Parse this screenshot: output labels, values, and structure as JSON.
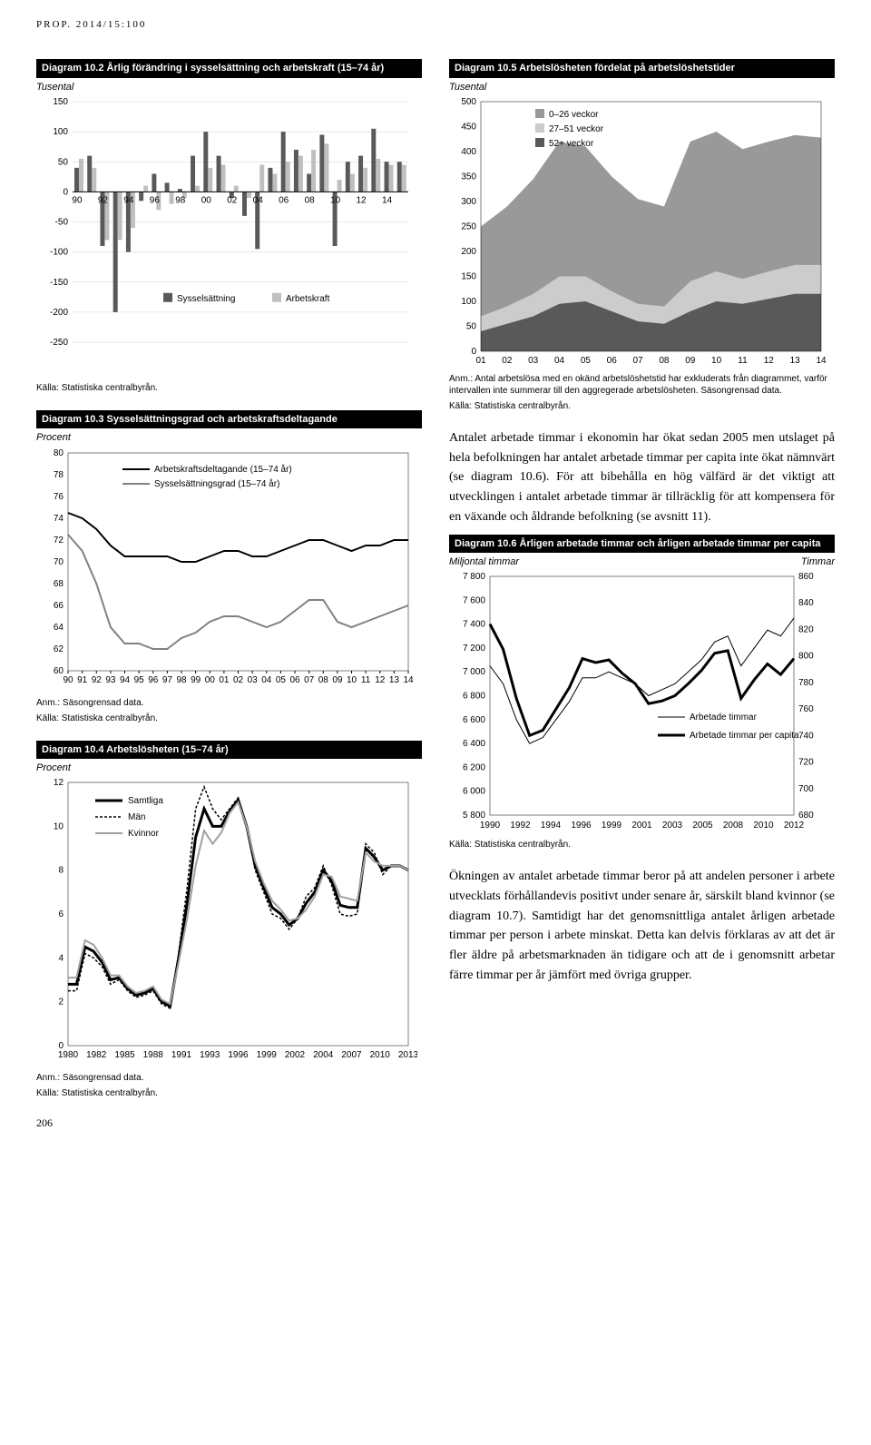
{
  "header": "PROP. 2014/15:100",
  "page_num": "206",
  "d102": {
    "title": "Diagram 10.2 Årlig förändring i sysselsättning och arbetskraft (15–74 år)",
    "subtitle": "Tusental",
    "type": "bar",
    "categories": [
      "90",
      "92",
      "94",
      "96",
      "98",
      "00",
      "02",
      "04",
      "06",
      "08",
      "10",
      "12",
      "14"
    ],
    "series": [
      {
        "name": "Sysselsättning",
        "color": "#595959",
        "values": [
          40,
          60,
          -90,
          -200,
          -100,
          -15,
          30,
          15,
          5,
          60,
          100,
          60,
          -10,
          -40,
          -95,
          40,
          100,
          70,
          30,
          95,
          -90,
          50,
          60,
          105,
          50,
          50
        ]
      },
      {
        "name": "Arbetskraft",
        "color": "#bfbfbf",
        "values": [
          55,
          40,
          -80,
          -80,
          -60,
          10,
          -30,
          -20,
          -10,
          10,
          40,
          45,
          10,
          -10,
          45,
          30,
          50,
          60,
          70,
          80,
          20,
          30,
          40,
          55,
          45,
          45
        ]
      }
    ],
    "xlim": [
      0,
      25
    ],
    "ylim": [
      -250,
      150
    ],
    "ytick_step": 50,
    "background_color": "#ffffff",
    "grid_color": "#d0d0d0",
    "source": "Källa: Statistiska centralbyrån."
  },
  "d103": {
    "title": "Diagram 10.3 Sysselsättningsgrad och arbetskraftsdeltagande",
    "subtitle": "Procent",
    "type": "line",
    "categories": [
      "90",
      "91",
      "92",
      "93",
      "94",
      "95",
      "96",
      "97",
      "98",
      "99",
      "00",
      "01",
      "02",
      "03",
      "04",
      "05",
      "06",
      "07",
      "08",
      "09",
      "10",
      "11",
      "12",
      "13",
      "14"
    ],
    "series": [
      {
        "name": "Arbetskraftsdeltagande (15–74 år)",
        "color": "#000000",
        "width": 2,
        "values": [
          74.5,
          74,
          73,
          71.5,
          70.5,
          70.5,
          70.5,
          70.5,
          70,
          70,
          70.5,
          71,
          71,
          70.5,
          70.5,
          71,
          71.5,
          72,
          72,
          71.5,
          71,
          71.5,
          71.5,
          72,
          72
        ]
      },
      {
        "name": "Sysselsättningsgrad (15–74 år)",
        "color": "#808080",
        "width": 2,
        "values": [
          72.5,
          71,
          68,
          64,
          62.5,
          62.5,
          62,
          62,
          63,
          63.5,
          64.5,
          65,
          65,
          64.5,
          64,
          64.5,
          65.5,
          66.5,
          66.5,
          64.5,
          64,
          64.5,
          65,
          65.5,
          66
        ]
      }
    ],
    "ylim": [
      60,
      80
    ],
    "ytick_step": 2,
    "note": "Anm.: Säsongrensad data.",
    "source": "Källa: Statistiska centralbyrån."
  },
  "d104": {
    "title": "Diagram 10.4 Arbetslösheten (15–74 år)",
    "subtitle": "Procent",
    "type": "line",
    "categories": [
      "1980",
      "1982",
      "1985",
      "1988",
      "1991",
      "1993",
      "1996",
      "1999",
      "2002",
      "2004",
      "2007",
      "2010",
      "2013"
    ],
    "series": [
      {
        "name": "Samtliga",
        "color": "#000000",
        "width": 3,
        "dash": "none",
        "values": [
          2.8,
          2.8,
          4.5,
          4.3,
          3.8,
          3.0,
          3.1,
          2.6,
          2.3,
          2.4,
          2.6,
          2.0,
          1.8,
          4.0,
          6.5,
          9.5,
          10.8,
          10.0,
          10.0,
          10.7,
          11.2,
          10.0,
          8.2,
          7.2,
          6.3,
          6.0,
          5.5,
          5.8,
          6.5,
          7.0,
          8.0,
          7.5,
          6.4,
          6.3,
          6.3,
          9.0,
          8.6,
          8.0,
          8.2,
          8.2,
          8.0
        ]
      },
      {
        "name": "Män",
        "color": "#000000",
        "width": 1.5,
        "dash": "3,2",
        "values": [
          2.5,
          2.5,
          4.2,
          4.0,
          3.6,
          2.8,
          3.0,
          2.5,
          2.2,
          2.3,
          2.5,
          1.9,
          1.7,
          4.2,
          7.2,
          10.8,
          11.8,
          10.8,
          10.3,
          10.8,
          11.3,
          10.0,
          8.0,
          7.0,
          6.0,
          5.8,
          5.3,
          5.8,
          6.8,
          7.2,
          8.2,
          7.3,
          6.0,
          5.9,
          6.0,
          9.2,
          8.8,
          7.8,
          8.2,
          8.2,
          8.0
        ]
      },
      {
        "name": "Kvinnor",
        "color": "#a0a0a0",
        "width": 2,
        "dash": "none",
        "values": [
          3.1,
          3.1,
          4.8,
          4.6,
          4.0,
          3.2,
          3.2,
          2.7,
          2.4,
          2.5,
          2.7,
          2.1,
          1.9,
          3.8,
          5.8,
          8.2,
          9.8,
          9.2,
          9.7,
          10.6,
          11.1,
          10.0,
          8.4,
          7.4,
          6.6,
          6.2,
          5.7,
          5.8,
          6.2,
          6.8,
          7.8,
          7.7,
          6.8,
          6.7,
          6.6,
          8.8,
          8.4,
          8.2,
          8.2,
          8.2,
          8.0
        ]
      }
    ],
    "ylim": [
      0,
      12
    ],
    "ytick_step": 2,
    "note": "Anm.: Säsongrensad data.",
    "source": "Källa: Statistiska centralbyrån."
  },
  "d105": {
    "title": "Diagram 10.5 Arbetslösheten fördelat på arbetslöshetstider",
    "subtitle": "Tusental",
    "type": "area",
    "legend": [
      {
        "label": "0–26 veckor",
        "color": "#999999"
      },
      {
        "label": "27–51 veckor",
        "color": "#cccccc"
      },
      {
        "label": "52+ veckor",
        "color": "#595959"
      }
    ],
    "categories": [
      "01",
      "02",
      "03",
      "04",
      "05",
      "06",
      "07",
      "08",
      "09",
      "10",
      "11",
      "12",
      "13",
      "14"
    ],
    "series": [
      {
        "name": "52+",
        "color": "#595959",
        "values": [
          40,
          55,
          70,
          95,
          100,
          80,
          60,
          55,
          80,
          100,
          95,
          105,
          115,
          115
        ]
      },
      {
        "name": "27-51",
        "color": "#cccccc",
        "values": [
          30,
          35,
          45,
          55,
          50,
          40,
          35,
          35,
          60,
          60,
          50,
          55,
          58,
          58
        ]
      },
      {
        "name": "0-26",
        "color": "#999999",
        "values": [
          180,
          200,
          230,
          270,
          260,
          230,
          210,
          200,
          280,
          280,
          260,
          260,
          260,
          255
        ]
      }
    ],
    "ylim": [
      0,
      500
    ],
    "ytick_step": 50,
    "note": "Anm.: Antal arbetslösa med en okänd arbetslöshetstid har exkluderats från diagrammet, varför intervallen inte summerar till den aggregerade arbetslösheten. Säsongrensad data.",
    "source": "Källa: Statistiska centralbyrån."
  },
  "paragraph1": "Antalet arbetade timmar i ekonomin har ökat sedan 2005 men utslaget på hela befolkningen har antalet arbetade timmar per capita inte ökat nämnvärt (se diagram 10.6). För att bibehålla en hög välfärd är det viktigt att utvecklingen i antalet arbetade timmar är tillräcklig för att kompensera för en växande och åldrande befolkning (se avsnitt 11).",
  "d106": {
    "title": "Diagram 10.6 Årligen arbetade timmar och årligen arbetade timmar per capita",
    "subtitle_left": "Miljontal timmar",
    "subtitle_right": "Timmar",
    "type": "line",
    "categories": [
      "1990",
      "1992",
      "1994",
      "1996",
      "1999",
      "2001",
      "2003",
      "2005",
      "2008",
      "2010",
      "2012"
    ],
    "series": [
      {
        "name": "Arbetade timmar",
        "color": "#000000",
        "width": 1,
        "values": [
          7050,
          6900,
          6600,
          6400,
          6450,
          6600,
          6750,
          6950,
          6950,
          7000,
          6950,
          6900,
          6800,
          6850,
          6900,
          7000,
          7100,
          7250,
          7300,
          7050,
          7200,
          7350,
          7300,
          7450
        ]
      },
      {
        "name": "Arbetade timmar per capita",
        "color": "#000000",
        "width": 3,
        "axis": "right",
        "values": [
          824,
          805,
          768,
          740,
          744,
          760,
          776,
          798,
          795,
          797,
          787,
          779,
          764,
          766,
          770,
          779,
          789,
          802,
          804,
          768,
          782,
          794,
          786,
          798
        ]
      }
    ],
    "ylim_left": [
      5800,
      7800
    ],
    "ytick_left": 200,
    "ylim_right": [
      680,
      860
    ],
    "ytick_right": 20,
    "source": "Källa: Statistiska centralbyrån."
  },
  "paragraph2": "Ökningen av antalet arbetade timmar beror på att andelen personer i arbete utvecklats förhållandevis positivt under senare år, särskilt bland kvinnor (se diagram 10.7). Samtidigt har det genomsnittliga antalet årligen arbetade timmar per person i arbete minskat. Detta kan delvis förklaras av att det är fler äldre på arbetsmarknaden än tidigare och att de i genomsnitt arbetar färre timmar per år jämfört med övriga grupper."
}
